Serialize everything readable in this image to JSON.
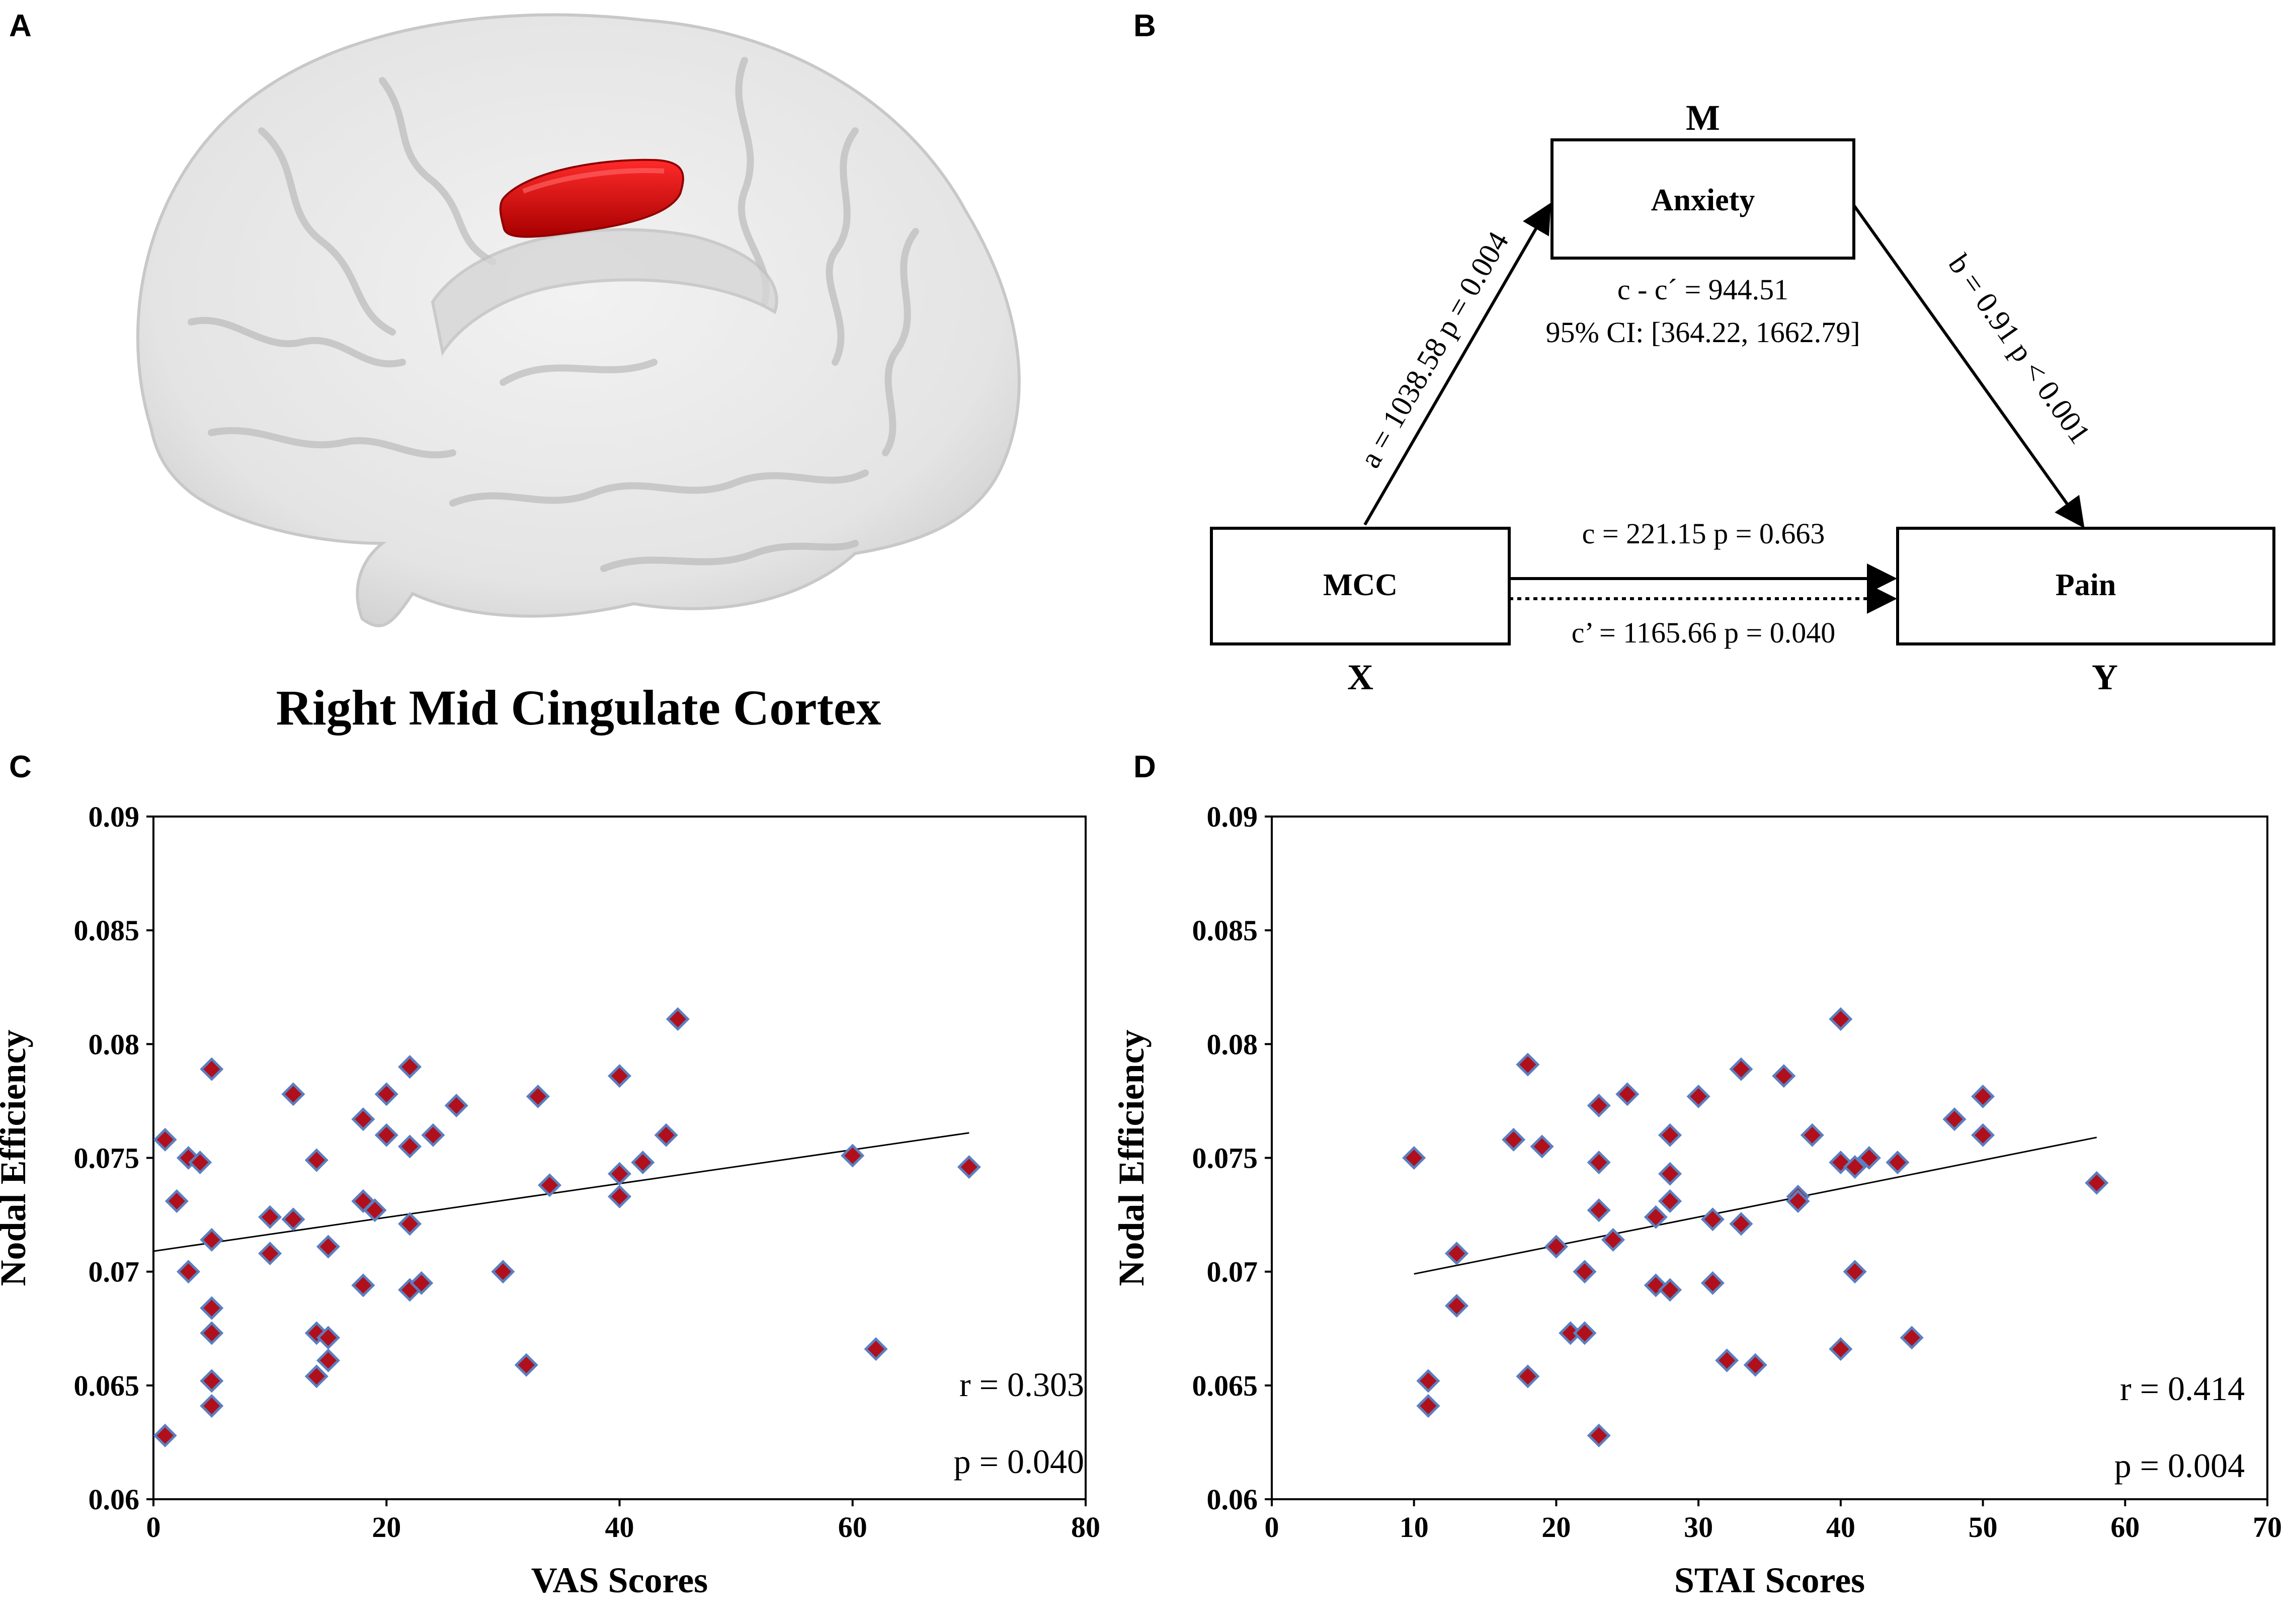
{
  "panels": {
    "a": {
      "letter": "A",
      "caption": "Right Mid Cingulate Cortex"
    },
    "b": {
      "letter": "B",
      "m_label": "M",
      "x_label": "X",
      "y_label": "Y",
      "anxiety_box": "Anxiety",
      "mcc_box": "MCC",
      "pain_box": "Pain",
      "path_a": "a = 1038.58 p = 0.004",
      "path_b": "b = 0.91 p < 0.001",
      "indirect": "c - c´ =  944.51",
      "ci": "95% CI: [364.22, 1662.79]",
      "path_c": "c = 221.15  p = 0.663",
      "path_c_prime": "c’ = 1165.66  p = 0.040"
    },
    "c": {
      "letter": "C",
      "r_text": "r = 0.303",
      "p_text": "p = 0.040"
    },
    "d": {
      "letter": "D",
      "r_text": "r = 0.414",
      "p_text": "p = 0.004"
    }
  },
  "colors": {
    "marker_fill": "#b0101c",
    "marker_edge": "#5a7fc0",
    "brain_roi": "#e00000"
  },
  "chart_data": [
    {
      "type": "scatter",
      "panel": "C",
      "title": "",
      "xlabel": "VAS Scores",
      "ylabel": "Nodal Efficiency",
      "xlim": [
        0,
        80
      ],
      "ylim": [
        0.06,
        0.09
      ],
      "xticks": [
        "0",
        "20",
        "40",
        "60",
        "80"
      ],
      "yticks": [
        "0.06",
        "0.065",
        "0.07",
        "0.075",
        "0.08",
        "0.085",
        "0.09"
      ],
      "trendline": {
        "x": [
          0,
          70
        ],
        "y": [
          0.0709,
          0.0761
        ]
      },
      "points": [
        [
          1,
          0.0758
        ],
        [
          1,
          0.0628
        ],
        [
          2,
          0.0731
        ],
        [
          3,
          0.075
        ],
        [
          3,
          0.07
        ],
        [
          4,
          0.0748
        ],
        [
          5,
          0.0789
        ],
        [
          5,
          0.0714
        ],
        [
          5,
          0.0684
        ],
        [
          5,
          0.0673
        ],
        [
          5,
          0.0652
        ],
        [
          5,
          0.0641
        ],
        [
          10,
          0.0724
        ],
        [
          10,
          0.0708
        ],
        [
          12,
          0.0778
        ],
        [
          12,
          0.0723
        ],
        [
          14,
          0.0749
        ],
        [
          14,
          0.0673
        ],
        [
          14,
          0.0654
        ],
        [
          15,
          0.0711
        ],
        [
          15,
          0.0671
        ],
        [
          15,
          0.0661
        ],
        [
          18,
          0.0767
        ],
        [
          18,
          0.0731
        ],
        [
          18,
          0.0694
        ],
        [
          19,
          0.0727
        ],
        [
          20,
          0.0778
        ],
        [
          20,
          0.076
        ],
        [
          22,
          0.079
        ],
        [
          22,
          0.0755
        ],
        [
          22,
          0.0721
        ],
        [
          22,
          0.0692
        ],
        [
          23,
          0.0695
        ],
        [
          24,
          0.076
        ],
        [
          26,
          0.0773
        ],
        [
          30,
          0.07
        ],
        [
          32,
          0.0659
        ],
        [
          33,
          0.0777
        ],
        [
          34,
          0.0738
        ],
        [
          40,
          0.0786
        ],
        [
          40,
          0.0743
        ],
        [
          40,
          0.0733
        ],
        [
          42,
          0.0748
        ],
        [
          44,
          0.076
        ],
        [
          45,
          0.0811
        ],
        [
          60,
          0.0751
        ],
        [
          62,
          0.0666
        ],
        [
          70,
          0.0746
        ]
      ],
      "annotations": [
        "r = 0.303",
        "p = 0.040"
      ]
    },
    {
      "type": "scatter",
      "panel": "D",
      "title": "",
      "xlabel": "STAI Scores",
      "ylabel": "Nodal Efficiency",
      "xlim": [
        0,
        70
      ],
      "ylim": [
        0.06,
        0.09
      ],
      "xticks": [
        "0",
        "10",
        "20",
        "30",
        "40",
        "50",
        "60",
        "70"
      ],
      "yticks": [
        "0.06",
        "0.065",
        "0.07",
        "0.075",
        "0.08",
        "0.085",
        "0.09"
      ],
      "trendline": {
        "x": [
          10,
          58
        ],
        "y": [
          0.0699,
          0.0759
        ]
      },
      "points": [
        [
          10,
          0.075
        ],
        [
          11,
          0.0652
        ],
        [
          11,
          0.0641
        ],
        [
          13,
          0.0708
        ],
        [
          13,
          0.0685
        ],
        [
          17,
          0.0758
        ],
        [
          18,
          0.0791
        ],
        [
          18,
          0.0654
        ],
        [
          19,
          0.0755
        ],
        [
          20,
          0.0711
        ],
        [
          21,
          0.0673
        ],
        [
          22,
          0.07
        ],
        [
          22,
          0.0673
        ],
        [
          23,
          0.0773
        ],
        [
          23,
          0.0748
        ],
        [
          23,
          0.0727
        ],
        [
          23,
          0.0628
        ],
        [
          24,
          0.0714
        ],
        [
          25,
          0.0778
        ],
        [
          27,
          0.0724
        ],
        [
          27,
          0.0694
        ],
        [
          28,
          0.076
        ],
        [
          28,
          0.0743
        ],
        [
          28,
          0.0731
        ],
        [
          28,
          0.0692
        ],
        [
          30,
          0.0777
        ],
        [
          31,
          0.0723
        ],
        [
          31,
          0.0695
        ],
        [
          32,
          0.0661
        ],
        [
          33,
          0.0789
        ],
        [
          33,
          0.0721
        ],
        [
          34,
          0.0659
        ],
        [
          36,
          0.0786
        ],
        [
          37,
          0.0733
        ],
        [
          37,
          0.0731
        ],
        [
          38,
          0.076
        ],
        [
          40,
          0.0811
        ],
        [
          40,
          0.0748
        ],
        [
          40,
          0.0666
        ],
        [
          41,
          0.0746
        ],
        [
          41,
          0.07
        ],
        [
          42,
          0.075
        ],
        [
          44,
          0.0748
        ],
        [
          45,
          0.0671
        ],
        [
          48,
          0.0767
        ],
        [
          50,
          0.0777
        ],
        [
          50,
          0.076
        ],
        [
          58,
          0.0739
        ]
      ],
      "annotations": [
        "r = 0.414",
        "p = 0.004"
      ]
    }
  ]
}
